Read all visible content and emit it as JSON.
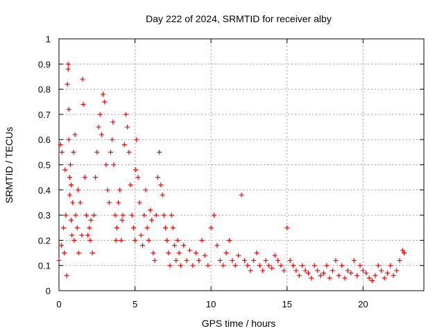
{
  "chart_data": {
    "type": "scatter",
    "title": "Day 222 of 2024, SRMTID for receiver alby",
    "xlabel": "GPS time / hours",
    "ylabel": "SRMTID / TECUs",
    "xlim": [
      0,
      24
    ],
    "ylim": [
      0,
      1
    ],
    "x_ticks": [
      0,
      5,
      10,
      15,
      20
    ],
    "y_ticks": [
      0,
      0.1,
      0.2,
      0.3,
      0.4,
      0.5,
      0.6,
      0.7,
      0.8,
      0.9,
      1
    ],
    "x_tick_labels": [
      "0",
      "5",
      "10",
      "15",
      "20"
    ],
    "y_tick_labels": [
      "0",
      "0.1",
      "0.2",
      "0.3",
      "0.4",
      "0.5",
      "0.6",
      "0.7",
      "0.8",
      "0.9",
      "1"
    ],
    "grid": true,
    "marker": "+",
    "marker_color": "#ff0000",
    "series": [
      {
        "name": "SRMTID",
        "x": [
          0.0,
          0.1,
          0.15,
          0.2,
          0.3,
          0.35,
          0.4,
          0.45,
          0.5,
          0.55,
          0.6,
          0.6,
          0.65,
          0.65,
          0.7,
          0.7,
          0.75,
          0.8,
          0.8,
          0.85,
          0.9,
          0.95,
          1.0,
          1.05,
          1.1,
          1.2,
          1.25,
          1.3,
          1.4,
          1.5,
          1.55,
          1.6,
          1.7,
          1.8,
          1.9,
          2.0,
          2.05,
          2.1,
          2.2,
          2.3,
          2.4,
          2.5,
          2.6,
          2.7,
          2.8,
          2.9,
          3.0,
          3.1,
          3.2,
          3.3,
          3.4,
          3.5,
          3.55,
          3.6,
          3.7,
          3.75,
          3.8,
          3.9,
          4.0,
          4.1,
          4.15,
          4.2,
          4.3,
          4.4,
          4.5,
          4.6,
          4.7,
          4.8,
          4.9,
          5.0,
          5.05,
          5.1,
          5.2,
          5.3,
          5.4,
          5.5,
          5.6,
          5.7,
          5.8,
          5.9,
          6.0,
          6.1,
          6.2,
          6.3,
          6.4,
          6.5,
          6.6,
          6.7,
          6.8,
          6.9,
          7.0,
          7.1,
          7.2,
          7.3,
          7.4,
          7.5,
          7.6,
          7.7,
          7.8,
          7.9,
          8.0,
          8.2,
          8.4,
          8.6,
          8.8,
          9.0,
          9.2,
          9.4,
          9.6,
          9.8,
          10.0,
          10.2,
          10.4,
          10.6,
          10.8,
          11.0,
          11.2,
          11.4,
          11.6,
          11.8,
          12.0,
          12.2,
          12.4,
          12.6,
          12.8,
          13.0,
          13.2,
          13.4,
          13.6,
          13.8,
          14.0,
          14.2,
          14.4,
          14.6,
          14.8,
          15.0,
          15.2,
          15.4,
          15.6,
          15.8,
          16.0,
          16.2,
          16.4,
          16.6,
          16.8,
          17.0,
          17.2,
          17.4,
          17.6,
          17.8,
          18.0,
          18.2,
          18.4,
          18.6,
          18.8,
          19.0,
          19.2,
          19.4,
          19.6,
          19.8,
          20.0,
          20.2,
          20.4,
          20.6,
          20.8,
          21.0,
          21.2,
          21.4,
          21.6,
          21.8,
          22.0,
          22.2,
          22.4,
          22.6,
          22.7
        ],
        "y": [
          0.12,
          0.58,
          0.18,
          0.55,
          0.25,
          0.15,
          0.48,
          0.3,
          0.06,
          0.82,
          0.88,
          0.9,
          0.6,
          0.72,
          0.45,
          0.38,
          0.5,
          0.28,
          0.42,
          0.22,
          0.35,
          0.55,
          0.2,
          0.62,
          0.3,
          0.25,
          0.4,
          0.15,
          0.35,
          0.22,
          0.84,
          0.74,
          0.45,
          0.3,
          0.22,
          0.25,
          0.2,
          0.28,
          0.15,
          0.3,
          0.45,
          0.55,
          0.65,
          0.7,
          0.62,
          0.78,
          0.75,
          0.5,
          0.4,
          0.35,
          0.55,
          0.6,
          0.67,
          0.5,
          0.3,
          0.2,
          0.25,
          0.35,
          0.4,
          0.2,
          0.28,
          0.3,
          0.58,
          0.7,
          0.65,
          0.55,
          0.42,
          0.3,
          0.25,
          0.2,
          0.48,
          0.6,
          0.45,
          0.35,
          0.22,
          0.18,
          0.3,
          0.4,
          0.25,
          0.2,
          0.32,
          0.28,
          0.15,
          0.12,
          0.3,
          0.45,
          0.55,
          0.42,
          0.38,
          0.3,
          0.25,
          0.2,
          0.15,
          0.1,
          0.3,
          0.25,
          0.18,
          0.12,
          0.2,
          0.15,
          0.1,
          0.18,
          0.12,
          0.16,
          0.1,
          0.15,
          0.12,
          0.2,
          0.14,
          0.1,
          0.25,
          0.3,
          0.18,
          0.12,
          0.1,
          0.15,
          0.2,
          0.12,
          0.1,
          0.14,
          0.38,
          0.12,
          0.1,
          0.08,
          0.12,
          0.15,
          0.1,
          0.08,
          0.12,
          0.1,
          0.09,
          0.14,
          0.12,
          0.1,
          0.08,
          0.25,
          0.12,
          0.1,
          0.08,
          0.06,
          0.1,
          0.08,
          0.07,
          0.05,
          0.1,
          0.08,
          0.06,
          0.07,
          0.1,
          0.05,
          0.08,
          0.12,
          0.06,
          0.1,
          0.05,
          0.08,
          0.07,
          0.12,
          0.06,
          0.1,
          0.08,
          0.07,
          0.05,
          0.04,
          0.06,
          0.1,
          0.08,
          0.05,
          0.07,
          0.1,
          0.06,
          0.08,
          0.12,
          0.16,
          0.15
        ]
      }
    ]
  }
}
